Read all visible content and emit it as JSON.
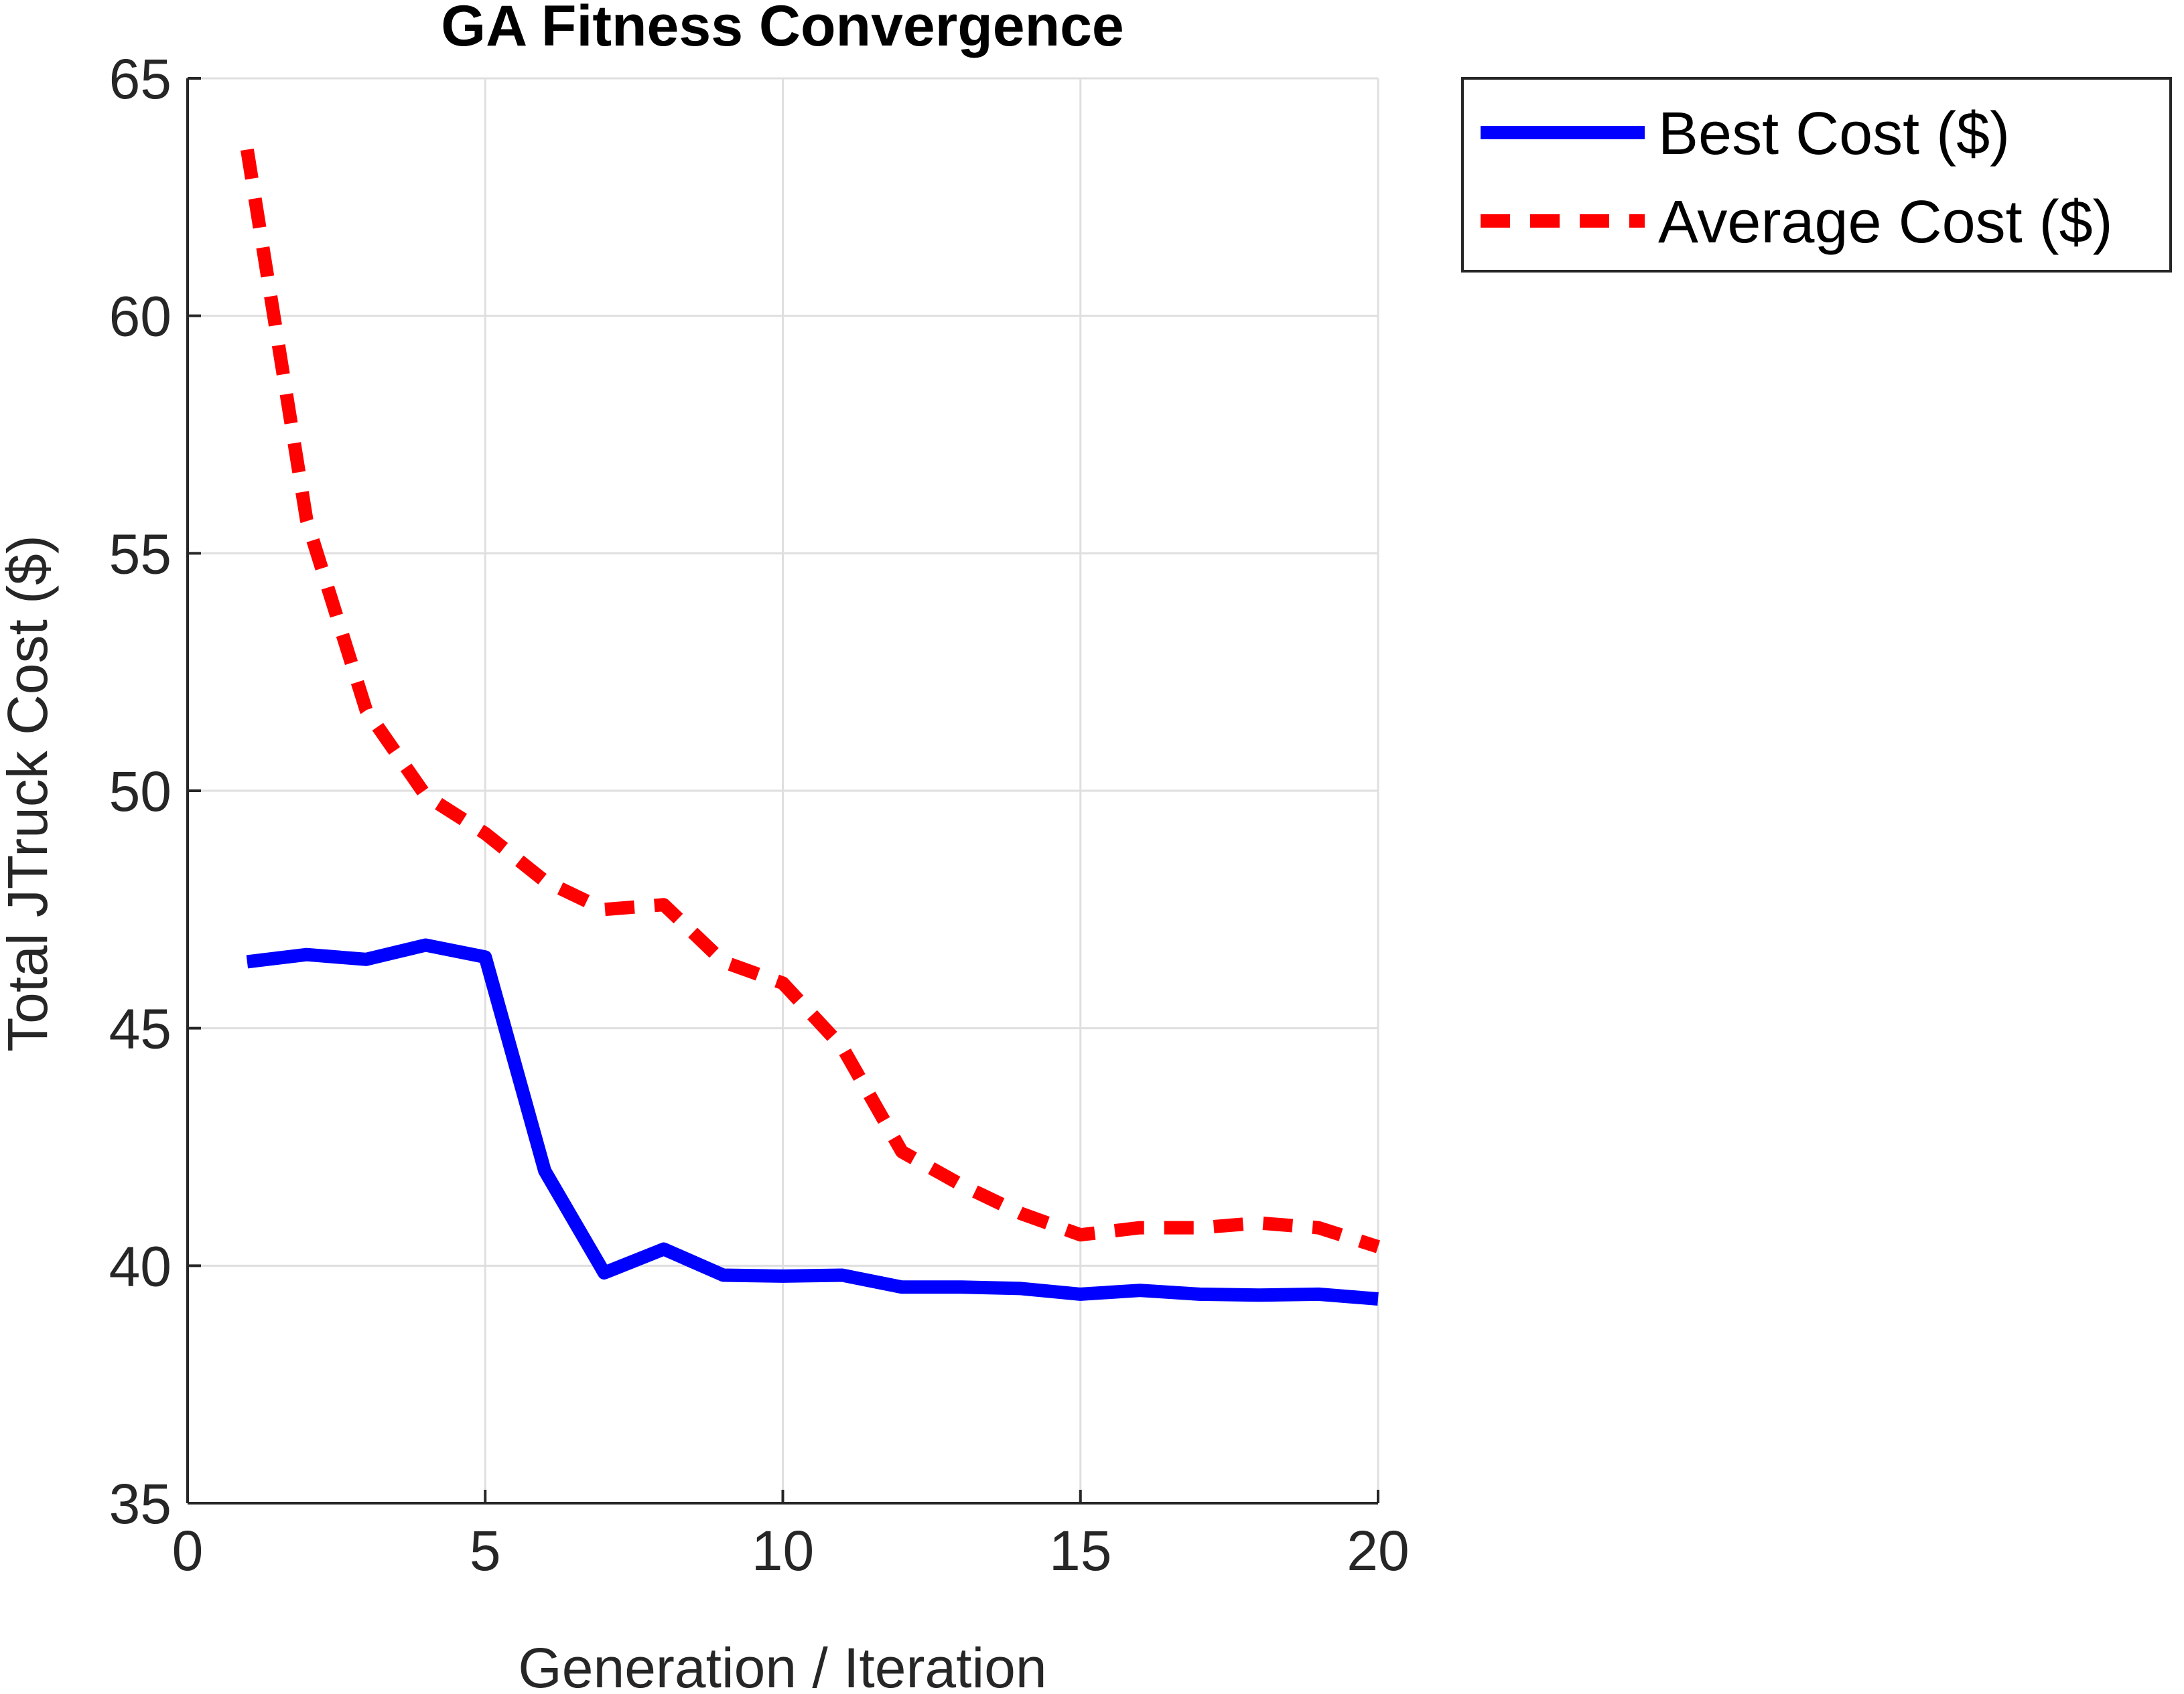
{
  "chart_data": {
    "type": "line",
    "title": "GA Fitness Convergence",
    "xlabel": "Generation / Iteration",
    "ylabel": "Total JTruck Cost ($)",
    "xlim": [
      0,
      20
    ],
    "ylim": [
      35,
      65
    ],
    "xticks": [
      0,
      5,
      10,
      15,
      20
    ],
    "yticks": [
      35,
      40,
      45,
      50,
      55,
      60,
      65
    ],
    "grid": true,
    "legend_position": "outside-top-right",
    "x": [
      1,
      2,
      3,
      4,
      5,
      6,
      7,
      8,
      9,
      10,
      11,
      12,
      13,
      14,
      15,
      16,
      17,
      18,
      19,
      20
    ],
    "series": [
      {
        "name": "Best Cost ($)",
        "style": "solid",
        "color": "#0000ff",
        "values": [
          46.4,
          46.55,
          46.45,
          46.75,
          46.5,
          42.0,
          39.85,
          40.35,
          39.8,
          39.78,
          39.8,
          39.55,
          39.55,
          39.52,
          39.4,
          39.48,
          39.4,
          39.38,
          39.4,
          39.3
        ]
      },
      {
        "name": "Average Cost ($)",
        "style": "dashed",
        "color": "#ff0000",
        "values": [
          63.5,
          55.7,
          51.7,
          49.9,
          49.1,
          48.1,
          47.5,
          47.6,
          46.4,
          45.95,
          44.6,
          42.4,
          41.7,
          41.1,
          40.65,
          40.8,
          40.8,
          40.9,
          40.8,
          40.4
        ]
      }
    ]
  }
}
